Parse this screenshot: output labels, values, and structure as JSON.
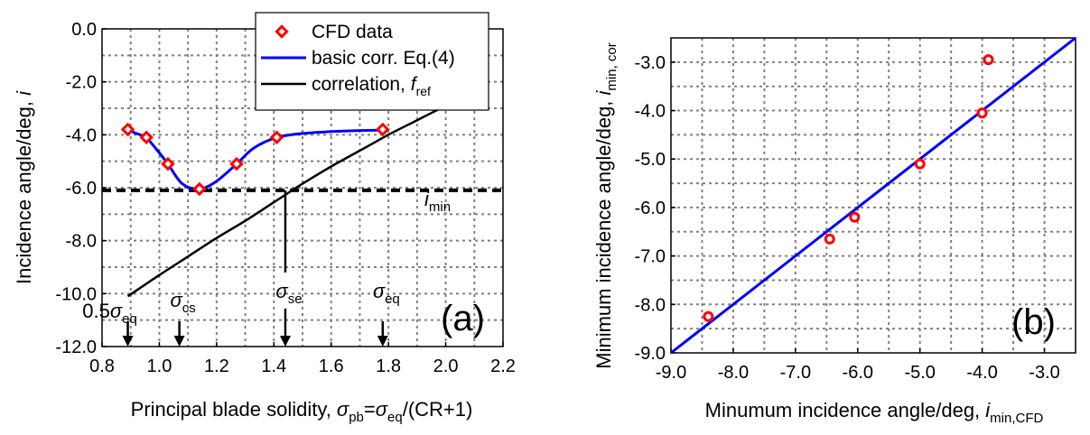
{
  "chart_data": [
    {
      "type": "line",
      "panel_label": "(a)",
      "xlabel": {
        "main": "Principal blade solidity, ",
        "var1": "σ",
        "sub1": "pb",
        "eq": "=",
        "var2": "σ",
        "sub2": "eq",
        "tail": "/(CR+1)"
      },
      "ylabel": {
        "main": "Incidence angle/deg, ",
        "var": "i"
      },
      "xlim": [
        0.8,
        2.2
      ],
      "ylim": [
        -12.0,
        0.0
      ],
      "xticks": [
        0.8,
        1.0,
        1.2,
        1.4,
        1.6,
        1.8,
        2.0,
        2.2
      ],
      "xtick_labels": [
        "0.8",
        "1.0",
        "1.2",
        "1.4",
        "1.6",
        "1.8",
        "2.0",
        "2.2"
      ],
      "yticks": [
        0.0,
        -2.0,
        -4.0,
        -6.0,
        -8.0,
        -10.0,
        -12.0
      ],
      "ytick_labels": [
        "0.0",
        "-2.0",
        "-4.0",
        "-6.0",
        "-8.0",
        "-10.0",
        "-12.0"
      ],
      "legend": {
        "placement": "top-right",
        "cfd": "CFD data",
        "basic": "basic corr. Eq.(4)",
        "corr_main": "correlation, ",
        "corr_var": "f",
        "corr_sub": "ref"
      },
      "series": [
        {
          "name": "CFD data",
          "color": "#ff0000",
          "x": [
            0.89,
            0.955,
            1.03,
            1.14,
            1.27,
            1.41,
            1.78
          ],
          "y": [
            -3.8,
            -4.1,
            -5.1,
            -6.05,
            -5.1,
            -4.1,
            -3.8
          ]
        },
        {
          "name": "basic corr. Eq.(4)",
          "color": "#0000ff",
          "x": [
            0.89,
            0.92,
            0.955,
            0.99,
            1.03,
            1.08,
            1.14,
            1.2,
            1.27,
            1.33,
            1.41,
            1.5,
            1.6,
            1.7,
            1.78
          ],
          "y": [
            -3.82,
            -3.95,
            -4.12,
            -4.55,
            -5.1,
            -5.85,
            -6.05,
            -5.75,
            -5.1,
            -4.5,
            -4.1,
            -3.95,
            -3.88,
            -3.84,
            -3.82
          ]
        },
        {
          "name": "correlation, f_ref",
          "color": "#000000",
          "x": [
            0.89,
            1.0,
            1.1,
            1.2,
            1.3,
            1.4,
            1.5,
            1.6,
            1.7,
            1.8,
            1.9,
            2.0
          ],
          "y": [
            -10.1,
            -9.3,
            -8.6,
            -7.9,
            -7.25,
            -6.55,
            -5.85,
            -5.2,
            -4.6,
            -4.0,
            -3.45,
            -2.9
          ]
        }
      ],
      "imin": {
        "y": -6.1,
        "label_var": "i",
        "label_sub": "min"
      },
      "sigma_se_line": {
        "x": 1.44,
        "y_top": -6.1,
        "y_bottom": -9.2
      },
      "markers": [
        {
          "x": 0.89,
          "coef": "0.5",
          "var": "σ",
          "sub": "eq"
        },
        {
          "x": 1.07,
          "coef": "",
          "var": "σ",
          "sub": "cs"
        },
        {
          "x": 1.44,
          "coef": "",
          "var": "σ",
          "sub": "se"
        },
        {
          "x": 1.78,
          "coef": "",
          "var": "σ",
          "sub": "eq"
        }
      ]
    },
    {
      "type": "scatter",
      "panel_label": "(b)",
      "xlabel": {
        "main": "Minumum incidence angle/deg, ",
        "var": "i",
        "sub": "min,CFD"
      },
      "ylabel": {
        "main": "Minimum incidence angle/deg, ",
        "var": "i",
        "sub": "min, cor"
      },
      "xlim": [
        -9.0,
        -2.5
      ],
      "ylim": [
        -9.0,
        -2.5
      ],
      "xticks": [
        -9.0,
        -8.0,
        -7.0,
        -6.0,
        -5.0,
        -4.0,
        -3.0
      ],
      "xtick_labels": [
        "-9.0",
        "-8.0",
        "-7.0",
        "-6.0",
        "-5.0",
        "-4.0",
        "-3.0"
      ],
      "yticks": [
        -9.0,
        -8.0,
        -7.0,
        -6.0,
        -5.0,
        -4.0,
        -3.0
      ],
      "ytick_labels": [
        "-9.0",
        "-8.0",
        "-7.0",
        "-6.0",
        "-5.0",
        "-4.0",
        "-3.0"
      ],
      "series": [
        {
          "name": "data",
          "color": "#ff0000",
          "x": [
            -8.4,
            -6.45,
            -6.05,
            -5.0,
            -4.0,
            -3.9
          ],
          "y": [
            -8.25,
            -6.65,
            -6.2,
            -5.1,
            -4.05,
            -2.95
          ]
        },
        {
          "name": "y = x",
          "color": "#0000ff",
          "x": [
            -9.0,
            -2.5
          ],
          "y": [
            -9.0,
            -2.5
          ]
        }
      ]
    }
  ]
}
